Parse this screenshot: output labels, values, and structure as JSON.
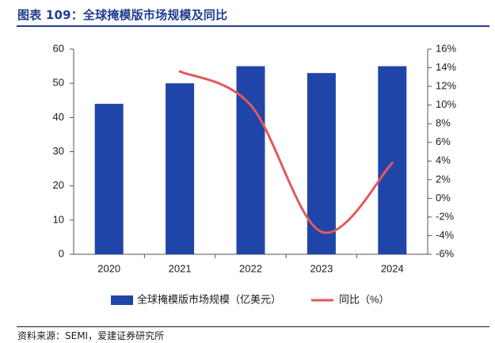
{
  "header": {
    "title": "图表 109：全球掩模版市场规模及同比"
  },
  "footer": {
    "source": "资料来源：SEMI，爱建证券研究所"
  },
  "chart_data": {
    "type": "bar",
    "title": "图表 109：全球掩模版市场规模及同比",
    "categories": [
      "2020",
      "2021",
      "2022",
      "2023",
      "2024"
    ],
    "series": [
      {
        "name": "全球掩模版市场规模（亿美元）",
        "type": "bar",
        "axis": "left",
        "color": "#1f45a8",
        "values": [
          44,
          50,
          55,
          53,
          55
        ]
      },
      {
        "name": "同比（%）",
        "type": "line",
        "axis": "right",
        "color": "#e05a5a",
        "values": [
          null,
          13.6,
          10.0,
          -3.6,
          3.8
        ]
      }
    ],
    "y_left": {
      "ylim": [
        0,
        60
      ],
      "ticks": [
        0,
        10,
        20,
        30,
        40,
        50,
        60
      ],
      "tick_labels": [
        "0",
        "10",
        "20",
        "30",
        "40",
        "50",
        "60"
      ]
    },
    "y_right": {
      "ylim": [
        -6,
        16
      ],
      "ticks": [
        -6,
        -4,
        -2,
        0,
        2,
        4,
        6,
        8,
        10,
        12,
        14,
        16
      ],
      "tick_labels": [
        "-6%",
        "-4%",
        "-2%",
        "0%",
        "2%",
        "4%",
        "6%",
        "8%",
        "10%",
        "12%",
        "14%",
        "16%"
      ]
    },
    "legend": {
      "position": "bottom",
      "items": [
        "全球掩模版市场规模（亿美元）",
        "同比（%）"
      ]
    },
    "grid": false
  }
}
